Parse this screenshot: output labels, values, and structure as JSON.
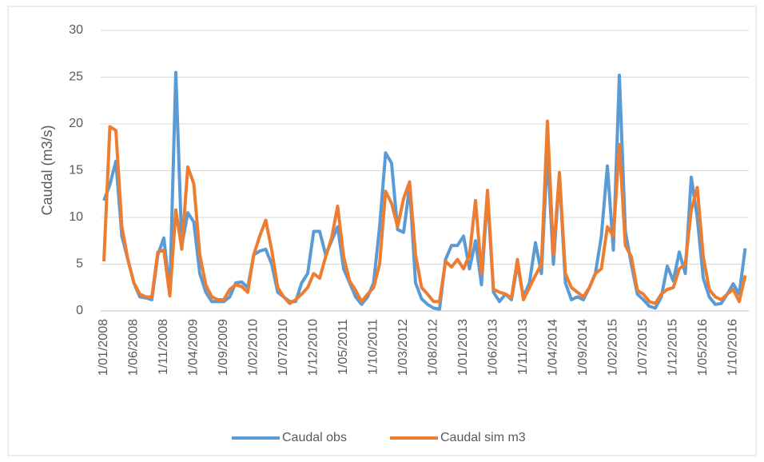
{
  "chart_data": {
    "type": "line",
    "y_label": "Caudal (m3/s)",
    "categories": [
      "1/01/2008",
      null,
      null,
      null,
      null,
      "1/06/2008",
      null,
      null,
      null,
      null,
      "1/11/2008",
      null,
      null,
      null,
      null,
      "1/04/2009",
      null,
      null,
      null,
      null,
      "1/09/2009",
      null,
      null,
      null,
      null,
      "1/02/2010",
      null,
      null,
      null,
      null,
      "1/07/2010",
      null,
      null,
      null,
      null,
      "1/12/2010",
      null,
      null,
      null,
      null,
      "1/05/2011",
      null,
      null,
      null,
      null,
      "1/10/2011",
      null,
      null,
      null,
      null,
      "1/03/2012",
      null,
      null,
      null,
      null,
      "1/08/2012",
      null,
      null,
      null,
      null,
      "1/01/2013",
      null,
      null,
      null,
      null,
      "1/06/2013",
      null,
      null,
      null,
      null,
      "1/11/2013",
      null,
      null,
      null,
      null,
      "1/04/2014",
      null,
      null,
      null,
      null,
      "1/09/2014",
      null,
      null,
      null,
      null,
      "1/02/2015",
      null,
      null,
      null,
      null,
      "1/07/2015",
      null,
      null,
      null,
      null,
      "1/12/2015",
      null,
      null,
      null,
      null,
      "1/05/2016",
      null,
      null,
      null,
      null,
      "1/10/2016",
      null,
      null
    ],
    "series": [
      {
        "name": "Caudal obs",
        "color": "#5b9bd5",
        "values": [
          11.8,
          13.5,
          16,
          8,
          5.5,
          3,
          1.5,
          1.4,
          1.2,
          6,
          7.8,
          2,
          25.5,
          7,
          10.5,
          9.5,
          4,
          2,
          1,
          1,
          1,
          1.5,
          3,
          3.1,
          2.5,
          6,
          6.4,
          6.6,
          5,
          2,
          1.5,
          1,
          1,
          3,
          4,
          8.5,
          8.5,
          6,
          7.5,
          9,
          4.5,
          3,
          1.5,
          0.7,
          1.5,
          3,
          9,
          16.9,
          15.8,
          8.7,
          8.4,
          13.3,
          3,
          1.3,
          0.7,
          0.3,
          0.2,
          5.5,
          7,
          7,
          8,
          4.5,
          7.5,
          2.8,
          12.5,
          2,
          1,
          1.8,
          1.2,
          5,
          1.5,
          3,
          7.3,
          4,
          17,
          5,
          14.5,
          3,
          1.2,
          1.5,
          1.2,
          2.5,
          4,
          8,
          15.5,
          6.5,
          25.2,
          8.5,
          5,
          1.8,
          1.2,
          0.5,
          0.3,
          1.5,
          4.8,
          3.2,
          6.3,
          4,
          14.3,
          10,
          3.5,
          1.5,
          0.7,
          0.8,
          1.8,
          2.9,
          1.8,
          6.7
        ]
      },
      {
        "name": "Caudal sim m3",
        "color": "#ed7d31",
        "values": [
          5.3,
          19.7,
          19.3,
          9,
          5.5,
          3,
          1.8,
          1.5,
          1.5,
          6.3,
          6.5,
          1.6,
          10.8,
          6.6,
          15.4,
          13.6,
          6,
          2.8,
          1.5,
          1.2,
          1.2,
          2.3,
          2.8,
          2.6,
          2,
          6,
          8,
          9.7,
          6.5,
          2.5,
          1.5,
          0.8,
          1.2,
          1.8,
          2.5,
          4,
          3.5,
          5.8,
          7.8,
          11.2,
          5.8,
          3.2,
          2.2,
          1,
          1.8,
          2.5,
          5,
          12.8,
          11.5,
          9,
          12,
          13.8,
          6,
          2.5,
          1.8,
          1,
          1,
          5.3,
          4.7,
          5.5,
          4.5,
          6,
          11.8,
          4,
          12.9,
          2.3,
          2,
          1.8,
          1.4,
          5.5,
          1.2,
          2.5,
          3.8,
          5,
          20.3,
          6,
          14.8,
          4,
          2.5,
          2,
          1.5,
          2.5,
          4,
          4.5,
          9,
          8,
          17.8,
          7,
          5.8,
          2.2,
          1.8,
          1,
          0.8,
          1.8,
          2.3,
          2.5,
          4.5,
          5,
          10.8,
          13.2,
          5.8,
          2.3,
          1.5,
          1.2,
          1.8,
          2.3,
          1,
          3.8
        ]
      }
    ],
    "ylim": [
      0,
      30
    ],
    "yticks": [
      0,
      5,
      10,
      15,
      20,
      25,
      30
    ],
    "grid": true,
    "legend": "bottom"
  }
}
